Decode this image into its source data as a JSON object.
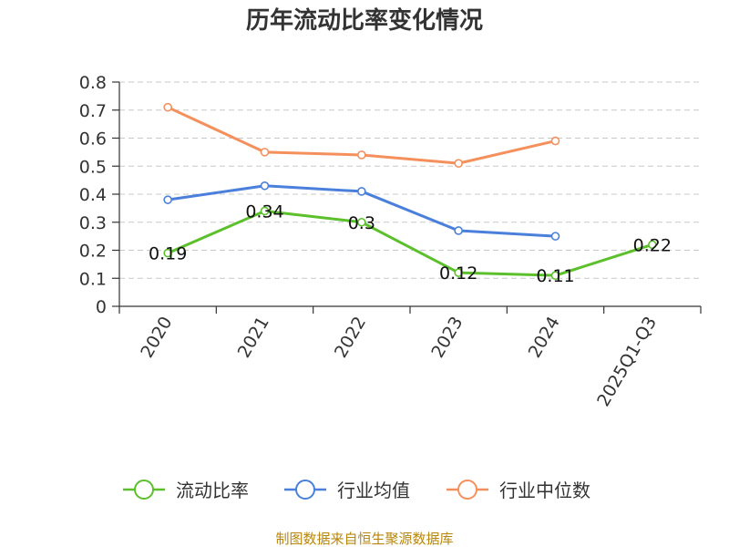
{
  "chart_data": {
    "type": "line",
    "title": "历年流动比率变化情况",
    "categories": [
      "2020",
      "2021",
      "2022",
      "2023",
      "2024",
      "2025Q1-Q3"
    ],
    "ylim": [
      0,
      0.8
    ],
    "yticks": [
      "0",
      "0.1",
      "0.2",
      "0.3",
      "0.4",
      "0.5",
      "0.6",
      "0.7",
      "0.8"
    ],
    "grid": true,
    "legend_position": "bottom",
    "series": [
      {
        "name": "流动比率",
        "color": "#5cc02c",
        "values": [
          0.19,
          0.34,
          0.3,
          0.12,
          0.11,
          0.22
        ],
        "labels": [
          "0.19",
          "0.34",
          "0.3",
          "0.12",
          "0.11",
          "0.22"
        ]
      },
      {
        "name": "行业均值",
        "color": "#4a7fdb",
        "values": [
          0.38,
          0.43,
          0.41,
          0.27,
          0.25,
          null
        ]
      },
      {
        "name": "行业中位数",
        "color": "#f5905c",
        "values": [
          0.71,
          0.55,
          0.54,
          0.51,
          0.59,
          null
        ]
      }
    ]
  },
  "source": "制图数据来自恒生聚源数据库"
}
